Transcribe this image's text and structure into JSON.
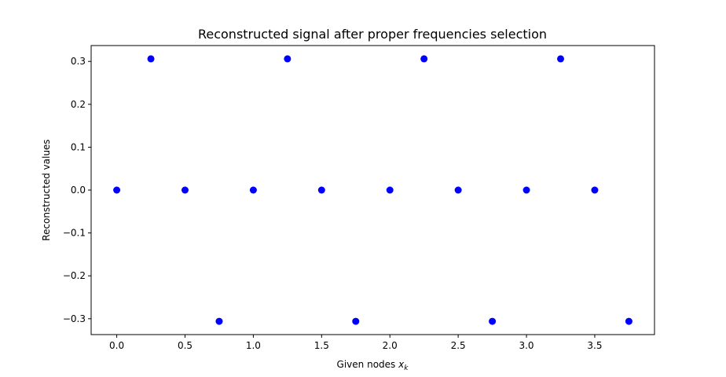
{
  "chart_data": {
    "type": "scatter",
    "title": "Reconstructed signal after proper frequencies selection",
    "xlabel_main": "Given nodes ",
    "xlabel_var": "x",
    "xlabel_sub": "k",
    "ylabel": "Reconstructed values",
    "xlim": [
      -0.1875,
      3.9375
    ],
    "ylim": [
      -0.337,
      0.337
    ],
    "xticks": [
      0.0,
      0.5,
      1.0,
      1.5,
      2.0,
      2.5,
      3.0,
      3.5
    ],
    "xtick_labels": [
      "0.0",
      "0.5",
      "1.0",
      "1.5",
      "2.0",
      "2.5",
      "3.0",
      "3.5"
    ],
    "yticks": [
      -0.3,
      -0.2,
      -0.1,
      0.0,
      0.1,
      0.2,
      0.3
    ],
    "ytick_labels": [
      "−0.3",
      "−0.2",
      "−0.1",
      "0.0",
      "0.1",
      "0.2",
      "0.3"
    ],
    "grid": false,
    "marker_color": "#0000ff",
    "series": [
      {
        "x": [
          0.0,
          0.25,
          0.5,
          0.75,
          1.0,
          1.25,
          1.5,
          1.75,
          2.0,
          2.25,
          2.5,
          2.75,
          3.0,
          3.25,
          3.5,
          3.75
        ],
        "y": [
          0.0,
          0.306,
          0.0,
          -0.306,
          0.0,
          0.306,
          0.0,
          -0.306,
          0.0,
          0.306,
          0.0,
          -0.306,
          0.0,
          0.306,
          0.0,
          -0.306
        ]
      }
    ]
  }
}
